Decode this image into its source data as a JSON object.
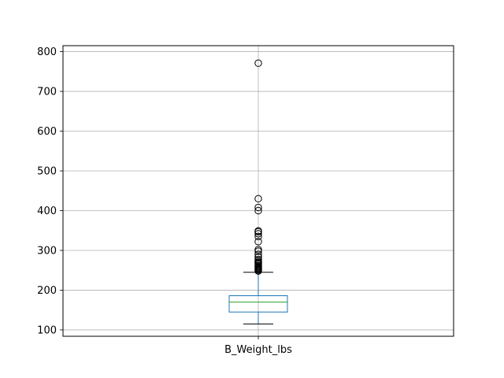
{
  "chart_data": {
    "type": "box",
    "title": "",
    "xlabel": "",
    "ylabel": "",
    "categories": [
      "B_Weight_lbs"
    ],
    "ylim": [
      84,
      815
    ],
    "yticks": [
      100,
      200,
      300,
      400,
      500,
      600,
      700,
      800
    ],
    "grid": true,
    "boxes": [
      {
        "name": "B_Weight_lbs",
        "whisker_low": 115,
        "q1": 145,
        "median": 170,
        "q3": 186,
        "whisker_high": 245,
        "outliers": [
          248,
          250,
          252,
          254,
          256,
          258,
          260,
          262,
          265,
          268,
          270,
          273,
          277,
          283,
          290,
          298,
          302,
          322,
          335,
          342,
          347,
          349,
          400,
          408,
          430,
          771
        ]
      }
    ],
    "colors": {
      "box": "#1f77b4",
      "median": "#2ca02c",
      "whisker": "#1f77b4",
      "cap": "#000000",
      "flier": "#000000",
      "grid": "#b0b0b0"
    }
  }
}
